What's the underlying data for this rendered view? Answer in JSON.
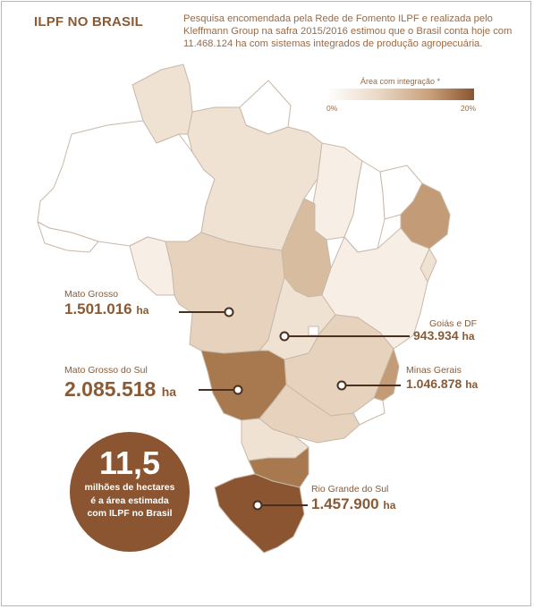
{
  "header": {
    "title": "ILPF NO BRASIL",
    "intro": "Pesquisa encomendada pela Rede de Fomento ILPF e realizada pelo Kleffmann Group na safra 2015/2016 estimou que o Brasil conta hoje com 11.468.124 ha com sistemas integrados de produção agropecuária."
  },
  "legend": {
    "title": "Área com integração *",
    "min_label": "0%",
    "max_label": "20%",
    "color_min": "#ffffff",
    "color_max": "#8a5530"
  },
  "callouts": [
    {
      "id": "mato-grosso",
      "name": "Mato Grosso",
      "value": "1.501.016",
      "unit": "ha"
    },
    {
      "id": "goias-df",
      "name": "Goiás e DF",
      "value": "943.934",
      "unit": "ha"
    },
    {
      "id": "mato-grosso-do-sul",
      "name": "Mato Grosso do Sul",
      "value": "2.085.518",
      "unit": "ha"
    },
    {
      "id": "minas-gerais",
      "name": "Minas Gerais",
      "value": "1.046.878",
      "unit": "ha"
    },
    {
      "id": "rio-grande-do-sul",
      "name": "Rio Grande do Sul",
      "value": "1.457.900",
      "unit": "ha"
    }
  ],
  "highlight": {
    "number": "11,5",
    "line1": "milhões de hectares",
    "line2": "é a área estimada",
    "line3": "com ILPF no Brasil"
  },
  "colors": {
    "text": "#8a5a35",
    "border": "#c8b8a8",
    "shade_0": "#ffffff",
    "shade_1": "#f7efe6",
    "shade_2": "#efe2d3",
    "shade_3": "#e6d2bd",
    "shade_4": "#d8bc9f",
    "shade_5": "#c39b76",
    "shade_6": "#a8794f",
    "shade_7": "#8a5530"
  }
}
